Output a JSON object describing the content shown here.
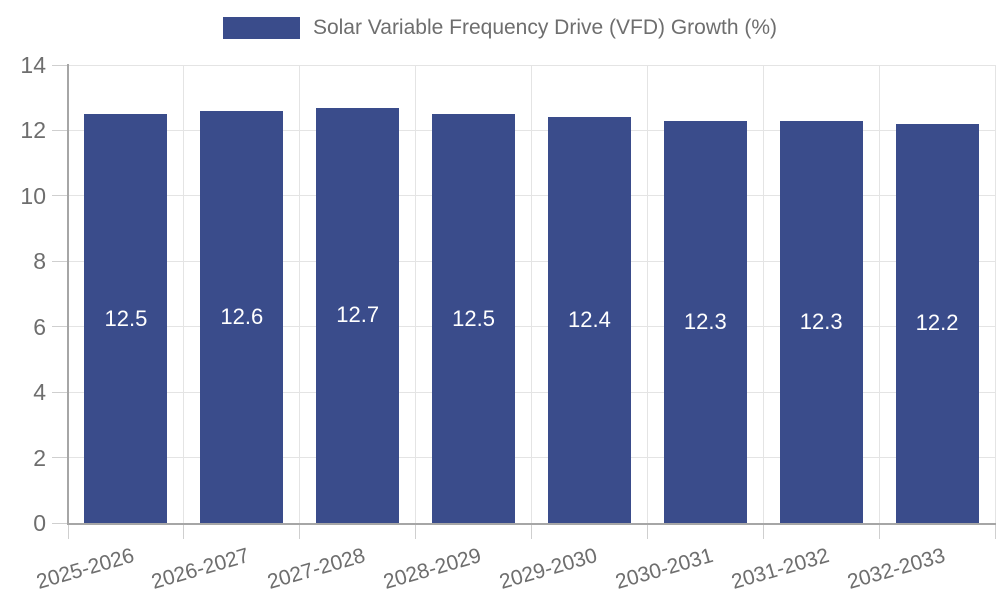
{
  "chart_data": {
    "type": "bar",
    "title": "Solar Variable Frequency Drive (VFD) Growth (%)",
    "categories": [
      "2025-2026",
      "2026-2027",
      "2027-2028",
      "2028-2029",
      "2029-2030",
      "2030-2031",
      "2031-2032",
      "2032-2033"
    ],
    "values": [
      12.5,
      12.6,
      12.7,
      12.5,
      12.4,
      12.3,
      12.3,
      12.2
    ],
    "value_labels": [
      "12.5",
      "12.6",
      "12.7",
      "12.5",
      "12.4",
      "12.3",
      "12.3",
      "12.2"
    ],
    "xlabel": "",
    "ylabel": "",
    "ylim": [
      0,
      14
    ],
    "ytick_step": 2,
    "ytick_labels": [
      "0",
      "2",
      "4",
      "6",
      "8",
      "10",
      "12",
      "14"
    ],
    "grid": true,
    "legend_position": "top-center",
    "x_label_rotation_deg": -16,
    "colors": {
      "bar": "#3A4C8B",
      "bar_label_text": "#ffffff",
      "grid": "#e4e4e4",
      "axis_line": "#a6a6a6",
      "tick": "#cfcfcf",
      "label_text": "#6e6e6e",
      "background": "#ffffff"
    }
  }
}
